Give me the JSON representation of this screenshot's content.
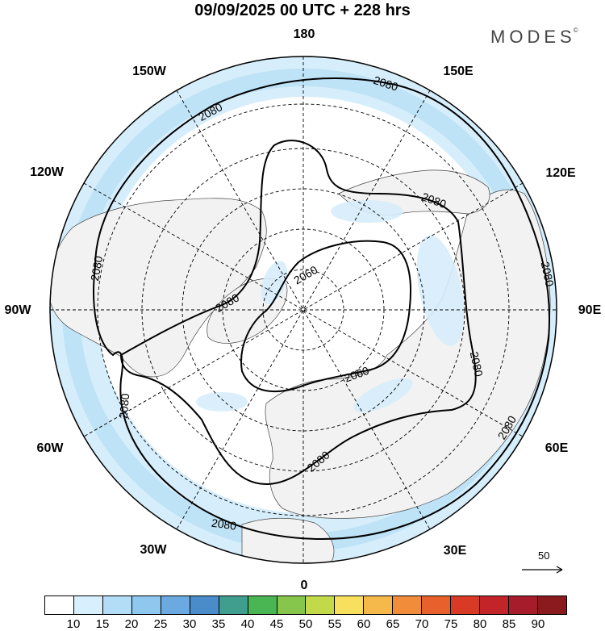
{
  "header": {
    "title": "09/09/2025  00 UTC  + 228 hrs",
    "brand": "MODES",
    "brand_mark": "©"
  },
  "map": {
    "projection": "north-polar-stereographic",
    "longitude_labels": [
      {
        "text": "180",
        "lon": 180
      },
      {
        "text": "150E",
        "lon": 150
      },
      {
        "text": "120E",
        "lon": 120
      },
      {
        "text": "90E",
        "lon": 90
      },
      {
        "text": "60E",
        "lon": 60
      },
      {
        "text": "30E",
        "lon": 30
      },
      {
        "text": "0",
        "lon": 0
      },
      {
        "text": "30W",
        "lon": -30
      },
      {
        "text": "60W",
        "lon": -60
      },
      {
        "text": "90W",
        "lon": -90
      },
      {
        "text": "120W",
        "lon": -120
      },
      {
        "text": "150W",
        "lon": -150
      }
    ],
    "contour_labels": [
      "2080",
      "2080",
      "2080",
      "2080",
      "2080",
      "2080",
      "2080",
      "2080",
      "2060",
      "2060",
      "2080",
      "2080"
    ],
    "scale_vector": "50",
    "colors": {
      "land": "#f2f2f2",
      "ocean": "#ffffff",
      "shade_light": "#d6eefb",
      "shade_mid": "#b4ddf4",
      "contour": "#000000",
      "grid": "#000000"
    }
  },
  "colorbar": {
    "ticks": [
      "10",
      "15",
      "20",
      "25",
      "30",
      "35",
      "40",
      "45",
      "50",
      "55",
      "60",
      "65",
      "70",
      "75",
      "80",
      "85",
      "90"
    ],
    "colors": [
      "#ffffff",
      "#d8f0fd",
      "#b3ddf6",
      "#8ec8ef",
      "#6aaae0",
      "#4a8cc9",
      "#3f9e8e",
      "#49b553",
      "#86c64c",
      "#c2d94a",
      "#f8e05e",
      "#f5b84a",
      "#f08c3a",
      "#e8612c",
      "#d93a26",
      "#c2242a",
      "#a71c2a",
      "#8b1a1e"
    ]
  }
}
